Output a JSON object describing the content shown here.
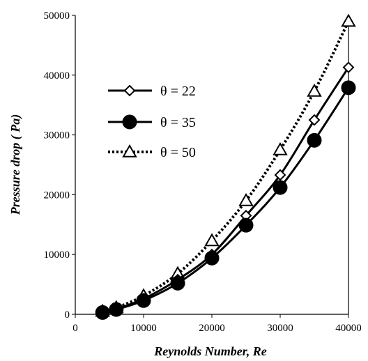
{
  "chart_data": {
    "type": "line",
    "xlabel": "Reynolds Number,  Re",
    "ylabel": "Pressure drop ( Pa)",
    "xlim": [
      0,
      40000
    ],
    "ylim": [
      0,
      50000
    ],
    "x_ticks": [
      "0",
      "10000",
      "20000",
      "30000",
      "40000"
    ],
    "y_ticks": [
      "0",
      "10000",
      "20000",
      "30000",
      "40000",
      "50000"
    ],
    "grid": false,
    "legend_position": "left",
    "series": [
      {
        "name": "θ = 22",
        "marker": "diamond-open",
        "line": "solid",
        "x": [
          4000,
          6000,
          10000,
          15000,
          20000,
          25000,
          30000,
          35000,
          40000
        ],
        "y": [
          400,
          900,
          2600,
          5800,
          10000,
          16500,
          23300,
          32500,
          41300
        ]
      },
      {
        "name": "θ = 35",
        "marker": "circle-filled",
        "line": "solid",
        "x": [
          4000,
          6000,
          10000,
          15000,
          20000,
          25000,
          30000,
          35000,
          40000
        ],
        "y": [
          300,
          800,
          2300,
          5200,
          9400,
          14900,
          21200,
          29100,
          37900
        ]
      },
      {
        "name": "θ = 50",
        "marker": "triangle-open",
        "line": "dotted",
        "x": [
          4000,
          6000,
          10000,
          15000,
          20000,
          25000,
          30000,
          35000,
          40000
        ],
        "y": [
          500,
          1100,
          3100,
          6800,
          12300,
          19000,
          27500,
          37300,
          49000
        ]
      }
    ]
  }
}
